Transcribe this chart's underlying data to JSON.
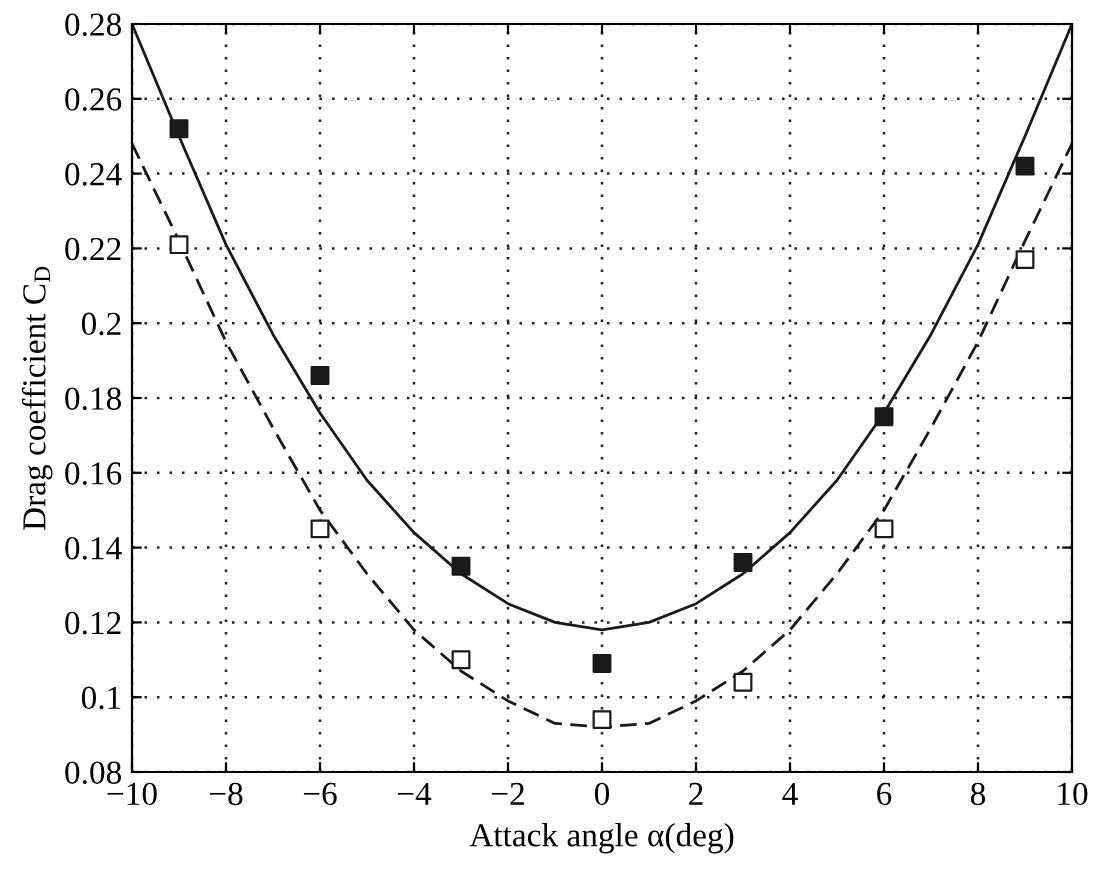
{
  "chart_data": {
    "type": "scatter",
    "xlabel": "Attack angle α(deg)",
    "ylabel": "Drag coefficient C$_{D}$",
    "xlim": [
      -10,
      10
    ],
    "xticks": [
      {
        "value": -10,
        "label": "−10"
      },
      {
        "value": -8,
        "label": "−8"
      },
      {
        "value": -6,
        "label": "−6"
      },
      {
        "value": -4,
        "label": "−4"
      },
      {
        "value": -2,
        "label": "−2"
      },
      0,
      2,
      4,
      6,
      8,
      10
    ],
    "ylim": [
      0.08,
      0.28
    ],
    "yticks": [
      0.08,
      0.1,
      0.12,
      0.14,
      0.16,
      0.18,
      0.2,
      0.22,
      0.24,
      0.26,
      0.28
    ],
    "grid": true,
    "legend": false,
    "series": [
      {
        "color": "#1a1a1a",
        "marker": "square",
        "x": [
          -9,
          -6,
          -3,
          0,
          3,
          6,
          9
        ],
        "values": [
          0.252,
          0.186,
          0.135,
          0.109,
          0.136,
          0.175,
          0.242
        ]
      },
      {
        "color": "#ffffff",
        "marker": "square",
        "x": [
          -9,
          -6,
          -3,
          0,
          3,
          6,
          9
        ],
        "values": [
          0.221,
          0.145,
          0.11,
          0.094,
          0.104,
          0.145,
          0.217
        ]
      },
      {
        "type": "line",
        "color": "#1a1a1a",
        "line_style": "solid",
        "x": [
          -10,
          -9,
          -8,
          -7,
          -6,
          -5,
          -4,
          -3,
          -2,
          -1,
          0,
          1,
          2,
          3,
          4,
          5,
          6,
          7,
          8,
          9,
          10
        ],
        "values": [
          0.28,
          0.25,
          0.221,
          0.197,
          0.176,
          0.158,
          0.144,
          0.133,
          0.125,
          0.12,
          0.118,
          0.12,
          0.125,
          0.133,
          0.144,
          0.158,
          0.176,
          0.197,
          0.221,
          0.25,
          0.28
        ]
      },
      {
        "type": "line",
        "color": "#1a1a1a",
        "line_style": "dashed",
        "x": [
          -10,
          -9,
          -8,
          -7,
          -6,
          -5,
          -4,
          -3,
          -2,
          -1,
          0,
          1,
          2,
          3,
          4,
          5,
          6,
          7,
          8,
          9,
          10
        ],
        "values": [
          0.248,
          0.222,
          0.195,
          0.172,
          0.15,
          0.133,
          0.118,
          0.107,
          0.099,
          0.093,
          0.092,
          0.093,
          0.099,
          0.107,
          0.118,
          0.133,
          0.15,
          0.172,
          0.195,
          0.222,
          0.248
        ]
      }
    ]
  }
}
